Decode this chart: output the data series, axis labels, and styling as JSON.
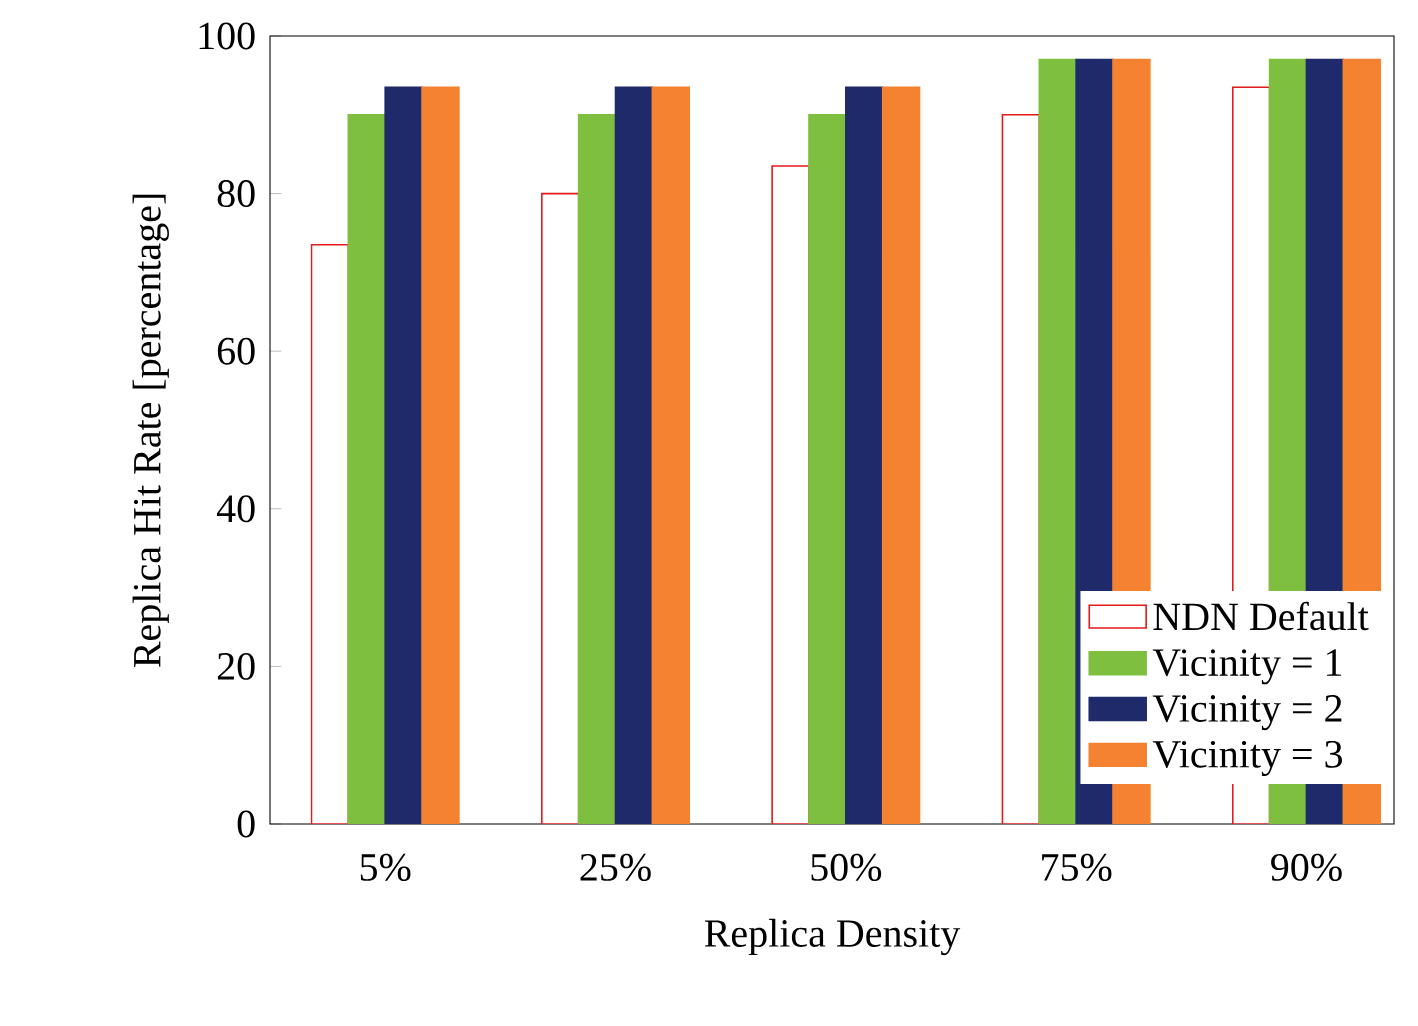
{
  "chart_data": {
    "type": "bar",
    "xlabel": "Replica Density",
    "ylabel": "Replica Hit Rate [percentage]",
    "categories": [
      "5%",
      "25%",
      "50%",
      "75%",
      "90%"
    ],
    "series": [
      {
        "name": "NDN Default",
        "color": "#e41a1c",
        "values": [
          73.5,
          80,
          83.5,
          90,
          93.5
        ]
      },
      {
        "name": "Vicinity = 1",
        "color": "#7fbf3f",
        "values": [
          90,
          90,
          90,
          97,
          97
        ]
      },
      {
        "name": "Vicinity = 2",
        "color": "#1f2a6b",
        "values": [
          93.5,
          93.5,
          93.5,
          97,
          97
        ]
      },
      {
        "name": "Vicinity = 3",
        "color": "#f58231",
        "values": [
          93.5,
          93.5,
          93.5,
          97,
          97
        ]
      }
    ],
    "ylim": [
      0,
      100
    ],
    "yticks": [
      0,
      20,
      40,
      60,
      80,
      100
    ],
    "grid": false,
    "legend": "bottom right"
  }
}
